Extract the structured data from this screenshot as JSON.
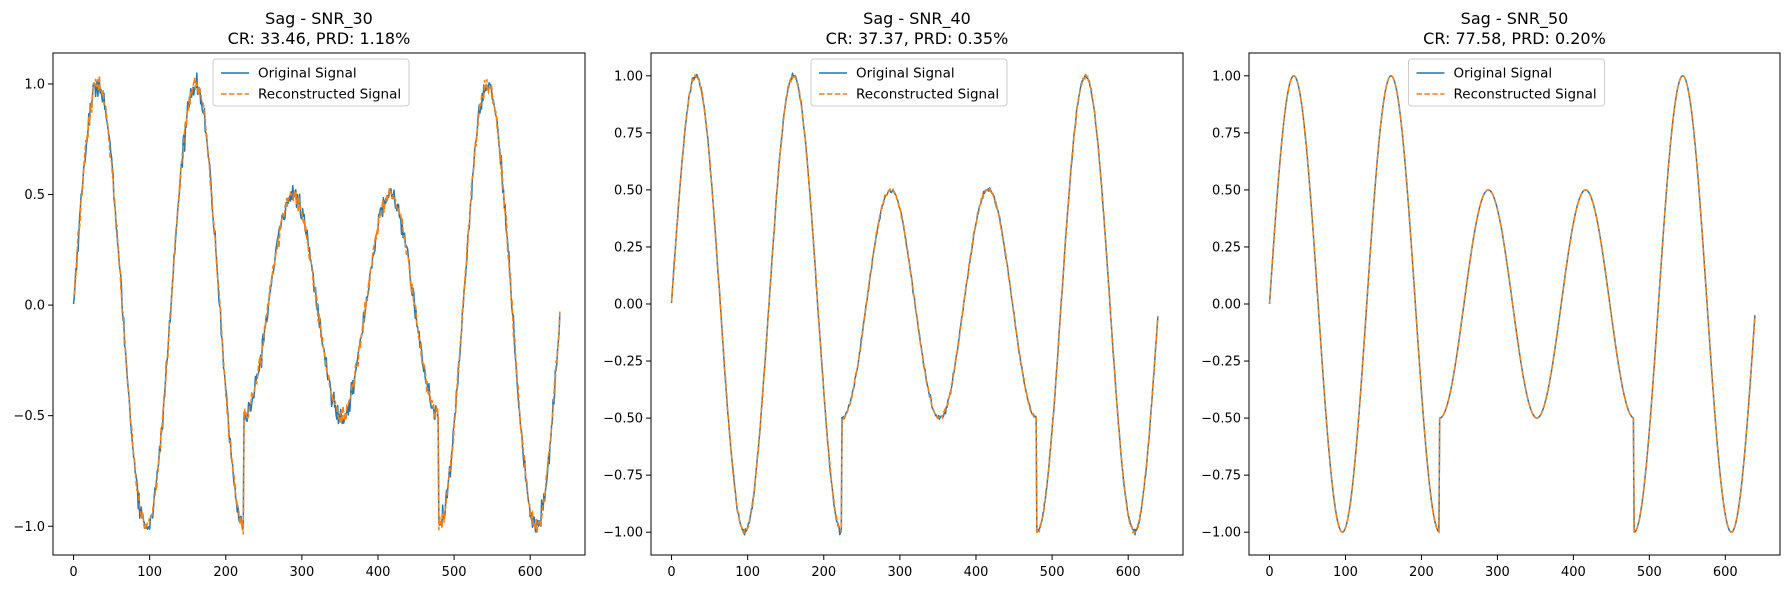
{
  "colors": {
    "original": "#1f77b4",
    "reconstructed": "#ff7f0e",
    "axes": "#000000",
    "background": "#ffffff"
  },
  "legend": {
    "placement": "upper-center",
    "original_label": "Original Signal",
    "reconstructed_label": "Reconstructed Signal"
  },
  "chart_data": [
    {
      "type": "line",
      "title": "Sag - SNR_30",
      "subtitle": "CR: 33.46, PRD: 1.18%",
      "xlim": [
        -27,
        672
      ],
      "ylim": [
        -1.13,
        1.14
      ],
      "xticks": [
        0,
        100,
        200,
        300,
        400,
        500,
        600
      ],
      "yticks": [
        -1.0,
        -0.5,
        0.0,
        0.5,
        1.0
      ],
      "ytick_labels": [
        "−1.0",
        "−0.5",
        "0.0",
        "0.5",
        "1.0"
      ],
      "legend_loc": "upper-center",
      "noise_level": 0.022,
      "model": {
        "n_samples": 640,
        "period_samples": 128,
        "sag_start": 224,
        "sag_end": 480,
        "sag_depth": 0.5
      },
      "series": [
        {
          "name": "Original Signal",
          "style": "solid"
        },
        {
          "name": "Reconstructed Signal",
          "style": "dashed"
        }
      ],
      "key_points": {
        "x": [
          0,
          32,
          96,
          160,
          224,
          288,
          352,
          416,
          480,
          544,
          608,
          639
        ],
        "y": [
          0.0,
          1.0,
          -1.0,
          1.0,
          -1.0,
          0.5,
          -0.5,
          0.5,
          -0.5,
          1.0,
          -1.0,
          -0.05
        ]
      }
    },
    {
      "type": "line",
      "title": "Sag - SNR_40",
      "subtitle": "CR: 37.37, PRD: 0.35%",
      "xlim": [
        -27,
        672
      ],
      "ylim": [
        -1.1,
        1.1
      ],
      "xticks": [
        0,
        100,
        200,
        300,
        400,
        500,
        600
      ],
      "yticks": [
        -1.0,
        -0.75,
        -0.5,
        -0.25,
        0.0,
        0.25,
        0.5,
        0.75,
        1.0
      ],
      "ytick_labels": [
        "−1.00",
        "−0.75",
        "−0.50",
        "−0.25",
        "0.00",
        "0.25",
        "0.50",
        "0.75",
        "1.00"
      ],
      "legend_loc": "upper-center",
      "noise_level": 0.006,
      "model": {
        "n_samples": 640,
        "period_samples": 128,
        "sag_start": 224,
        "sag_end": 480,
        "sag_depth": 0.5
      },
      "series": [
        {
          "name": "Original Signal",
          "style": "solid"
        },
        {
          "name": "Reconstructed Signal",
          "style": "dashed"
        }
      ],
      "key_points": {
        "x": [
          0,
          32,
          96,
          160,
          224,
          288,
          352,
          416,
          480,
          544,
          608,
          639
        ],
        "y": [
          0.0,
          1.0,
          -1.0,
          1.0,
          -1.0,
          0.5,
          -0.5,
          0.5,
          -0.5,
          1.0,
          -1.0,
          -0.05
        ]
      }
    },
    {
      "type": "line",
      "title": "Sag - SNR_50",
      "subtitle": "CR: 77.58, PRD: 0.20%",
      "xlim": [
        -27,
        672
      ],
      "ylim": [
        -1.1,
        1.1
      ],
      "xticks": [
        0,
        100,
        200,
        300,
        400,
        500,
        600
      ],
      "yticks": [
        -1.0,
        -0.75,
        -0.5,
        -0.25,
        0.0,
        0.25,
        0.5,
        0.75,
        1.0
      ],
      "ytick_labels": [
        "−1.00",
        "−0.75",
        "−0.50",
        "−0.25",
        "0.00",
        "0.25",
        "0.50",
        "0.75",
        "1.00"
      ],
      "legend_loc": "upper-center",
      "noise_level": 0.0,
      "model": {
        "n_samples": 640,
        "period_samples": 128,
        "sag_start": 224,
        "sag_end": 480,
        "sag_depth": 0.5
      },
      "series": [
        {
          "name": "Original Signal",
          "style": "solid"
        },
        {
          "name": "Reconstructed Signal",
          "style": "dashed"
        }
      ],
      "key_points": {
        "x": [
          0,
          32,
          96,
          160,
          224,
          288,
          352,
          416,
          480,
          544,
          608,
          639
        ],
        "y": [
          0.0,
          1.0,
          -1.0,
          1.0,
          -1.0,
          0.5,
          -0.5,
          0.5,
          -0.5,
          1.0,
          -1.0,
          -0.05
        ]
      }
    }
  ]
}
